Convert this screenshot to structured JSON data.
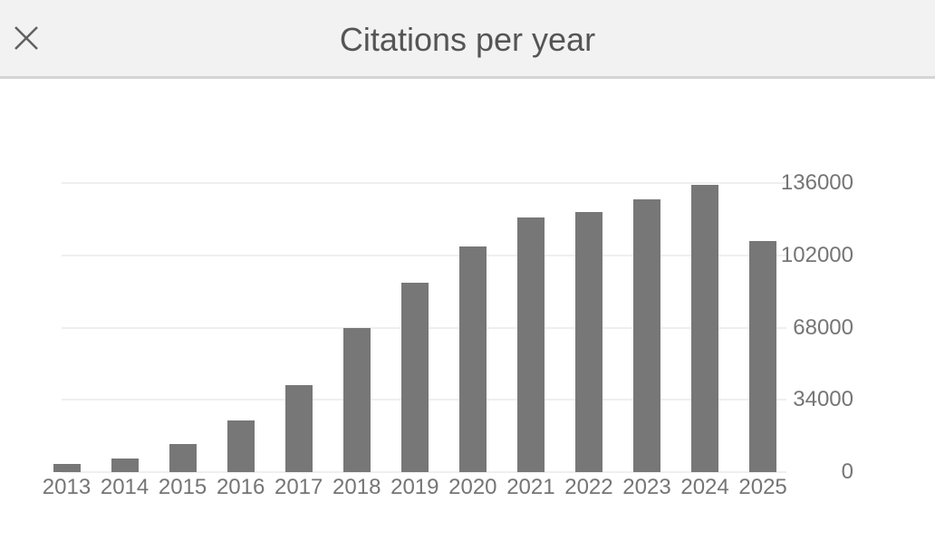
{
  "header": {
    "title": "Citations per year",
    "close_icon": "x"
  },
  "chart_data": {
    "type": "bar",
    "title": "Citations per year",
    "categories": [
      "2013",
      "2014",
      "2015",
      "2016",
      "2017",
      "2018",
      "2019",
      "2020",
      "2021",
      "2022",
      "2023",
      "2024",
      "2025"
    ],
    "values": [
      4000,
      6200,
      13400,
      24500,
      40800,
      67600,
      89000,
      106300,
      120000,
      122500,
      128400,
      135100,
      108800
    ],
    "xlabel": "",
    "ylabel": "",
    "y_ticks": [
      0,
      34000,
      68000,
      102000,
      136000
    ],
    "y_tick_labels": [
      "0",
      "34000",
      "68000",
      "102000",
      "136000"
    ],
    "ylim": [
      0,
      136000
    ],
    "grid": true,
    "legend": false,
    "y_axis_side": "right",
    "first_category_clipped": true,
    "colors": {
      "bar": "#777777",
      "gridline": "#efefef",
      "axis_label": "#757575",
      "title": "#555555",
      "header_bg": "#f2f2f2",
      "header_border": "#d5d5d5",
      "close_icon": "#616161"
    }
  }
}
